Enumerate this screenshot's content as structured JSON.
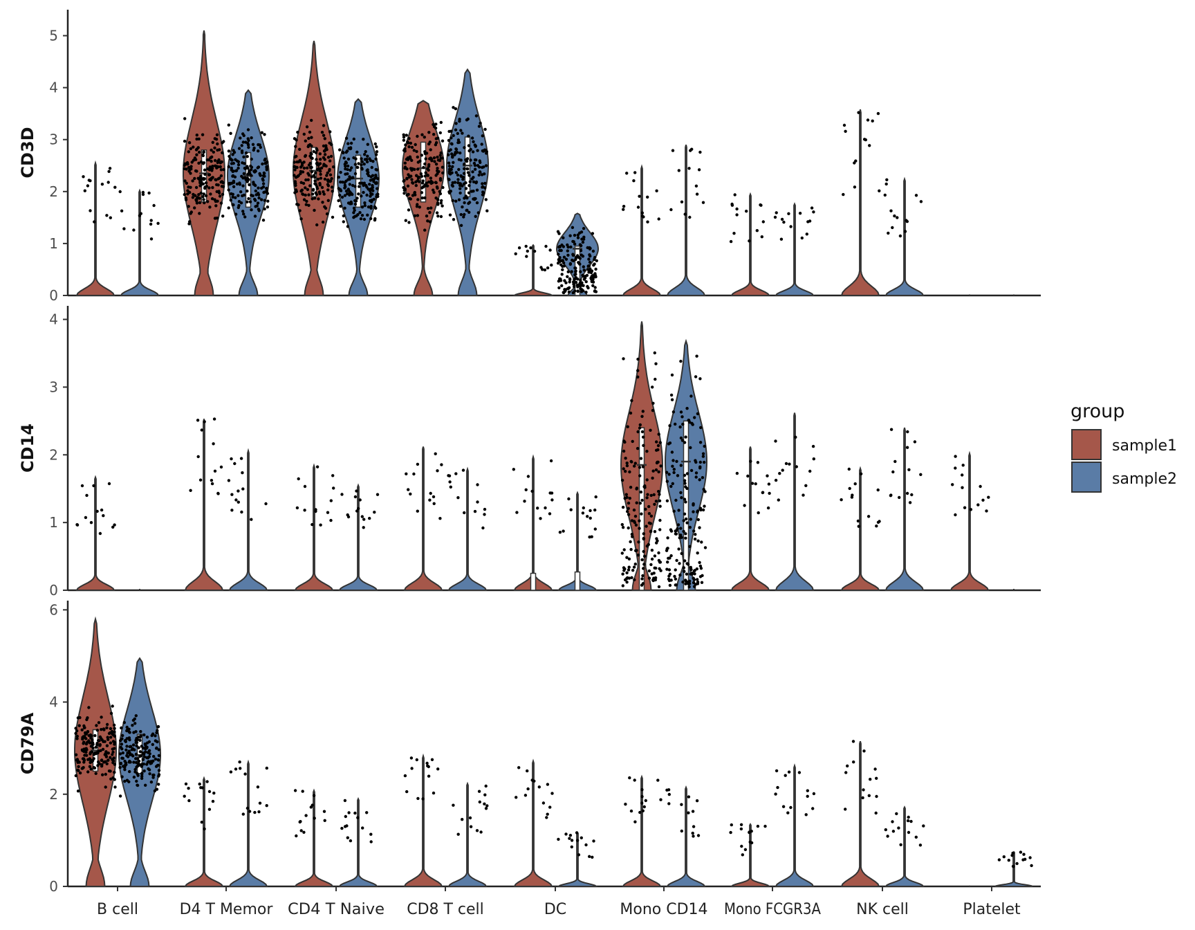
{
  "chart_data": {
    "type": "violin",
    "categories": [
      "B cell",
      "D4 T Memor",
      "CD4 T Naive",
      "CD8 T cell",
      "DC",
      "Mono CD14",
      "Mono FCGR3A",
      "NK cell",
      "Platelet"
    ],
    "legend": {
      "title": "group",
      "placement": "right",
      "entries": [
        {
          "name": "sample1",
          "color": "#a5574a"
        },
        {
          "name": "sample2",
          "color": "#5a7ca6"
        }
      ]
    },
    "grid": false,
    "panels": [
      {
        "name": "CD3D",
        "ylim": [
          0,
          5.5
        ],
        "ticks": [
          0,
          1,
          2,
          3,
          4,
          5
        ],
        "series": [
          {
            "name": "sample1",
            "max": [
              2.55,
              5.1,
              4.9,
              3.75,
              0.97,
              2.48,
              1.95,
              3.58,
              0.02
            ],
            "median": [
              0,
              2.35,
              2.4,
              2.45,
              0,
              0,
              0,
              0,
              0
            ],
            "q1": [
              0,
              1.8,
              1.9,
              1.8,
              0,
              0,
              0,
              0,
              0
            ],
            "q3": [
              0,
              2.8,
              2.85,
              2.95,
              0,
              0,
              0,
              0,
              0
            ]
          },
          {
            "name": "sample2",
            "max": [
              2.02,
              3.95,
              3.78,
              4.35,
              1.58,
              2.9,
              1.76,
              2.24,
              0.02
            ],
            "median": [
              0,
              2.3,
              2.25,
              2.5,
              0.9,
              0,
              0,
              0,
              0
            ],
            "q1": [
              0,
              1.7,
              1.7,
              1.9,
              0,
              0,
              0,
              0,
              0
            ],
            "q3": [
              0,
              2.75,
              2.7,
              3.05,
              0.95,
              0,
              0,
              0,
              0
            ]
          }
        ]
      },
      {
        "name": "CD14",
        "ylim": [
          0,
          4.2
        ],
        "ticks": [
          0,
          1,
          2,
          3,
          4
        ],
        "series": [
          {
            "name": "sample1",
            "max": [
              1.67,
              2.53,
              1.84,
              2.12,
              1.97,
              3.97,
              2.12,
              1.8,
              2.02
            ],
            "median": [
              0,
              0,
              0,
              0,
              0,
              1.85,
              0,
              0,
              0
            ],
            "q1": [
              0,
              0,
              0,
              0,
              0,
              0,
              0,
              0,
              0
            ],
            "q3": [
              0,
              0,
              0,
              0,
              0.25,
              2.4,
              0,
              0,
              0
            ]
          },
          {
            "name": "sample2",
            "max": [
              0.02,
              2.06,
              1.55,
              1.79,
              1.44,
              3.68,
              2.62,
              2.4,
              0.02
            ],
            "median": [
              0,
              0,
              0,
              0,
              0,
              1.9,
              0,
              0,
              0
            ],
            "q1": [
              0,
              0,
              0,
              0,
              0,
              0,
              0,
              0,
              0
            ],
            "q3": [
              0,
              0,
              0,
              0,
              0.27,
              2.5,
              0,
              0,
              0
            ]
          }
        ]
      },
      {
        "name": "CD79A",
        "ylim": [
          0,
          6.2
        ],
        "ticks": [
          0,
          2,
          4,
          6
        ],
        "series": [
          {
            "name": "sample1",
            "max": [
              5.8,
              2.35,
              2.08,
              2.83,
              2.72,
              2.38,
              1.35,
              3.15,
              0.02
            ],
            "median": [
              2.95,
              0,
              0,
              0,
              0,
              0,
              0,
              0,
              0
            ],
            "q1": [
              2.5,
              0,
              0,
              0,
              0,
              0,
              0,
              0,
              0
            ],
            "q3": [
              3.4,
              0,
              0,
              0,
              0,
              0,
              0,
              0,
              0
            ]
          },
          {
            "name": "sample2",
            "max": [
              4.95,
              2.7,
              1.9,
              2.23,
              1.17,
              2.15,
              2.62,
              1.72,
              0.75
            ],
            "median": [
              2.85,
              0,
              0,
              0,
              0,
              0,
              0,
              0,
              0
            ],
            "q1": [
              2.45,
              0,
              0,
              0,
              0,
              0,
              0,
              0,
              0
            ],
            "q3": [
              3.3,
              0,
              0,
              0,
              0,
              0,
              0,
              0,
              0
            ]
          }
        ]
      }
    ]
  }
}
